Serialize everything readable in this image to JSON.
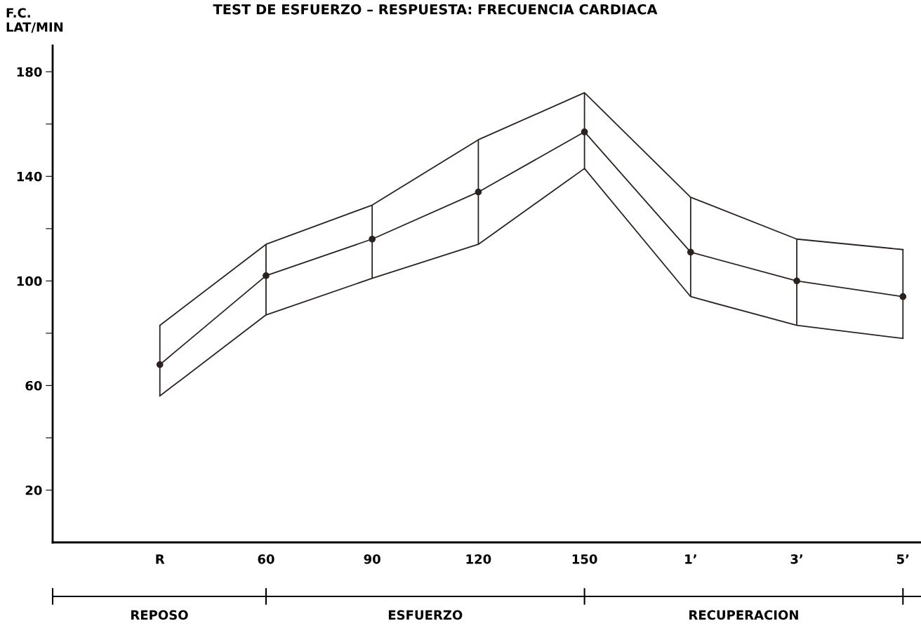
{
  "chart_data": {
    "type": "line",
    "title": "TEST DE ESFUERZO – RESPUESTA: FRECUENCIA CARDIACA",
    "ylabel": "F.C.\nLAT/MIN",
    "categories": [
      "R",
      "60",
      "90",
      "120",
      "150",
      "1’",
      "3’",
      "5’"
    ],
    "series": [
      {
        "color": "#2a2320",
        "marker": "circle",
        "values": [
          68,
          102,
          116,
          134,
          157,
          111,
          100,
          94
        ],
        "errors": [
          [
            56,
            83
          ],
          [
            87,
            114
          ],
          [
            101,
            129
          ],
          [
            114,
            154
          ],
          [
            143,
            172
          ],
          [
            94,
            132
          ],
          [
            83,
            116
          ],
          [
            78,
            112
          ]
        ]
      },
      {
        "color": "#2a2320",
        "marker": "none",
        "values": [
          83,
          114,
          129,
          154,
          172,
          132,
          116,
          112
        ]
      },
      {
        "color": "#2a2320",
        "marker": "none",
        "values": [
          56,
          87,
          101,
          114,
          143,
          94,
          83,
          78
        ]
      }
    ],
    "ylim": [
      0,
      190
    ],
    "yticks": [
      20,
      {
        "value": 40,
        "label": null
      },
      60,
      {
        "value": 80,
        "label": null
      },
      100,
      {
        "value": 120,
        "label": null
      },
      140,
      {
        "value": 160,
        "label": null
      },
      180
    ],
    "line_style": "solid",
    "grid": false,
    "annotations": [
      "REPOSO",
      "ESFUERZO",
      "RECUPERACION"
    ]
  }
}
